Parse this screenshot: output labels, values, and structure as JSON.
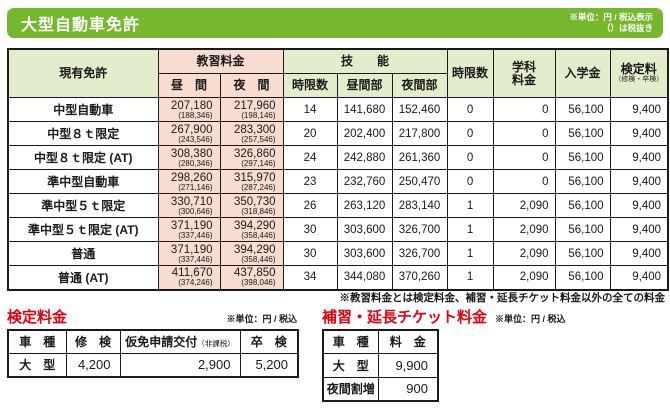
{
  "banner": {
    "title": "大型自動車免許",
    "note_line1": "※単位：円 / 税込表示",
    "note_line2": "（）は税抜き"
  },
  "main_table": {
    "headers": {
      "current_license": "現有免許",
      "training_fee": "教習料金",
      "daytime": "昼　間",
      "night": "夜　間",
      "skill": "技　　能",
      "skill_hours": "時限数",
      "skill_day": "昼間部",
      "skill_night": "夜間部",
      "academic_hours": "時限数",
      "academic_fee": "学科\n料金",
      "admission_fee": "入学金",
      "exam_fee": "検定料",
      "exam_fee_sub": "（修検・卒検）"
    },
    "rows": [
      {
        "license": "中型自動車",
        "day_fee": "207,180",
        "day_fee_tax_excluded": "(188,346)",
        "night_fee": "217,960",
        "night_fee_tax_excluded": "(198,146)",
        "skill_hours": "14",
        "skill_day_fee": "141,680",
        "skill_night_fee": "152,460",
        "academic_hours": "0",
        "academic_fee": "0",
        "admission_fee": "56,100",
        "exam_fee": "9,400"
      },
      {
        "license": "中型８ｔ限定",
        "day_fee": "267,900",
        "day_fee_tax_excluded": "(243,546)",
        "night_fee": "283,300",
        "night_fee_tax_excluded": "(257,546)",
        "skill_hours": "20",
        "skill_day_fee": "202,400",
        "skill_night_fee": "217,800",
        "academic_hours": "0",
        "academic_fee": "0",
        "admission_fee": "56,100",
        "exam_fee": "9,400"
      },
      {
        "license": "中型８ｔ限定 (AT)",
        "day_fee": "308,380",
        "day_fee_tax_excluded": "(280,346)",
        "night_fee": "326,860",
        "night_fee_tax_excluded": "(297,146)",
        "skill_hours": "24",
        "skill_day_fee": "242,880",
        "skill_night_fee": "261,360",
        "academic_hours": "0",
        "academic_fee": "0",
        "admission_fee": "56,100",
        "exam_fee": "9,400"
      },
      {
        "license": "準中型自動車",
        "day_fee": "298,260",
        "day_fee_tax_excluded": "(271,146)",
        "night_fee": "315,970",
        "night_fee_tax_excluded": "(287,246)",
        "skill_hours": "23",
        "skill_day_fee": "232,760",
        "skill_night_fee": "250,470",
        "academic_hours": "0",
        "academic_fee": "0",
        "admission_fee": "56,100",
        "exam_fee": "9,400"
      },
      {
        "license": "準中型５ｔ限定",
        "day_fee": "330,710",
        "day_fee_tax_excluded": "(300,646)",
        "night_fee": "350,730",
        "night_fee_tax_excluded": "(318,846)",
        "skill_hours": "26",
        "skill_day_fee": "263,120",
        "skill_night_fee": "283,140",
        "academic_hours": "1",
        "academic_fee": "2,090",
        "admission_fee": "56,100",
        "exam_fee": "9,400"
      },
      {
        "license": "準中型５ｔ限定 (AT)",
        "day_fee": "371,190",
        "day_fee_tax_excluded": "(337,446)",
        "night_fee": "394,290",
        "night_fee_tax_excluded": "(358,446)",
        "skill_hours": "30",
        "skill_day_fee": "303,600",
        "skill_night_fee": "326,700",
        "academic_hours": "1",
        "academic_fee": "2,090",
        "admission_fee": "56,100",
        "exam_fee": "9,400"
      },
      {
        "license": "普通",
        "day_fee": "371,190",
        "day_fee_tax_excluded": "(337,446)",
        "night_fee": "394,290",
        "night_fee_tax_excluded": "(358,446)",
        "skill_hours": "30",
        "skill_day_fee": "303,600",
        "skill_night_fee": "326,700",
        "academic_hours": "1",
        "academic_fee": "2,090",
        "admission_fee": "56,100",
        "exam_fee": "9,400"
      },
      {
        "license": "普通 (AT)",
        "day_fee": "411,670",
        "day_fee_tax_excluded": "(374,246)",
        "night_fee": "437,850",
        "night_fee_tax_excluded": "(398,046)",
        "skill_hours": "34",
        "skill_day_fee": "344,080",
        "skill_night_fee": "370,260",
        "academic_hours": "1",
        "academic_fee": "2,090",
        "admission_fee": "56,100",
        "exam_fee": "9,400"
      }
    ]
  },
  "footnote": "※教習料金とは検定料金、補習・延長チケット料金以外の全ての料金",
  "kentei_table": {
    "title": "検定料金",
    "unit_note": "※単位：円 / 税込",
    "headers": [
      {
        "label": "車　種"
      },
      {
        "label": "修　検"
      },
      {
        "label": "仮免申請交付",
        "sub": "（非課税）"
      },
      {
        "label": "卒　検"
      }
    ],
    "rows": [
      {
        "category": "大　型",
        "values": [
          "4,200",
          "2,900",
          "5,200"
        ]
      }
    ]
  },
  "ticket_table": {
    "title": "補習・延長チケット料金",
    "unit_note": "※単位：円 / 税込",
    "headers": [
      {
        "label": "車　種"
      },
      {
        "label": "料　金"
      }
    ],
    "rows": [
      {
        "category": "大　型",
        "values": [
          "9,900"
        ]
      },
      {
        "category": "夜間割増",
        "values": [
          "900"
        ]
      }
    ]
  },
  "colors": {
    "banner_green": "#76b82d",
    "header_light_green": "#e3edcc",
    "fee_cell_pink": "#f9dcd0",
    "section_title_red": "#e3000f"
  }
}
